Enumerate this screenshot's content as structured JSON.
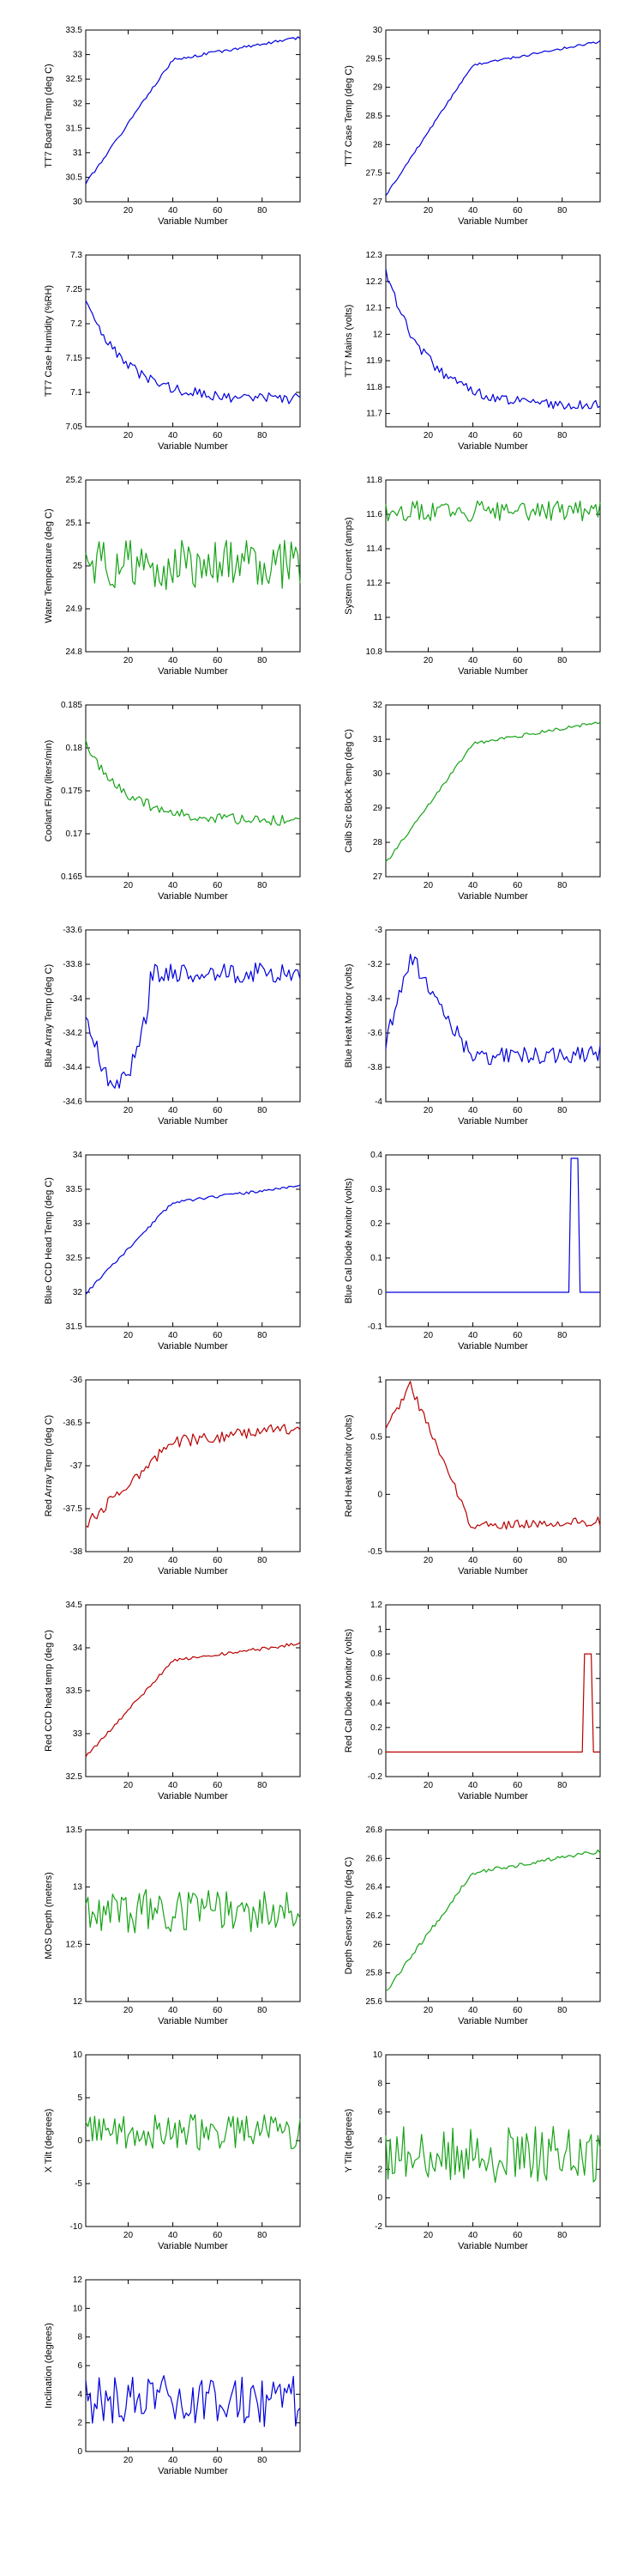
{
  "colors": {
    "blue": "#0000dd",
    "green": "#16a316",
    "red": "#b80000"
  },
  "chart_data": [
    {
      "type": "line",
      "xlabel": "Variable Number",
      "ylabel": "TT7 Board Temp (deg C)",
      "xlim": [
        1,
        97
      ],
      "ylim": [
        30,
        33.5
      ],
      "xticks": [
        "20",
        "40",
        "60",
        "80"
      ],
      "yticks": [
        "30",
        "30.5",
        "31",
        "31.5",
        "32",
        "32.5",
        "33",
        "33.5"
      ],
      "color": "blue",
      "shape": "sat",
      "params": [
        30.3,
        33.35
      ],
      "noise": 0.03,
      "seed": 1
    },
    {
      "type": "line",
      "xlabel": "Variable Number",
      "ylabel": "TT7 Case Temp (deg C)",
      "xlim": [
        1,
        97
      ],
      "ylim": [
        27,
        30
      ],
      "xticks": [
        "20",
        "40",
        "60",
        "80"
      ],
      "yticks": [
        "27",
        "27.5",
        "28",
        "28.5",
        "29",
        "29.5",
        "30"
      ],
      "color": "blue",
      "shape": "sat",
      "params": [
        27.05,
        29.8
      ],
      "noise": 0.02,
      "seed": 2
    },
    {
      "type": "line",
      "xlabel": "Variable Number",
      "ylabel": "TT7 Case Humidity (%RH)",
      "xlim": [
        1,
        97
      ],
      "ylim": [
        7.05,
        7.3
      ],
      "xticks": [
        "20",
        "40",
        "60",
        "80"
      ],
      "yticks": [
        "7.05",
        "7.1",
        "7.15",
        "7.2",
        "7.25",
        "7.3"
      ],
      "color": "blue",
      "shape": "dec",
      "params": [
        7.24,
        7.09
      ],
      "noise": 0.008,
      "seed": 3
    },
    {
      "type": "line",
      "xlabel": "Variable Number",
      "ylabel": "TT7 Mains  (volts)",
      "xlim": [
        1,
        97
      ],
      "ylim": [
        11.65,
        12.3
      ],
      "xticks": [
        "20",
        "40",
        "60",
        "80"
      ],
      "yticks": [
        "11.7",
        "11.8",
        "11.9",
        "12",
        "12.1",
        "12.2",
        "12.3"
      ],
      "color": "blue",
      "shape": "dec",
      "params": [
        12.27,
        11.73
      ],
      "noise": 0.02,
      "seed": 4
    },
    {
      "type": "line",
      "xlabel": "Variable Number",
      "ylabel": "Water Temperature (deg C)",
      "xlim": [
        1,
        97
      ],
      "ylim": [
        24.8,
        25.2
      ],
      "xticks": [
        "20",
        "40",
        "60",
        "80"
      ],
      "yticks": [
        "24.8",
        "24.9",
        "25",
        "25.1",
        "25.2"
      ],
      "color": "green",
      "shape": "noise",
      "params": [
        25.0
      ],
      "noise": 0.06,
      "seed": 5
    },
    {
      "type": "line",
      "xlabel": "Variable Number",
      "ylabel": "System Current (amps)",
      "xlim": [
        1,
        97
      ],
      "ylim": [
        10.8,
        11.8
      ],
      "xticks": [
        "20",
        "40",
        "60",
        "80"
      ],
      "yticks": [
        "10.8",
        "11",
        "11.2",
        "11.4",
        "11.6",
        "11.8"
      ],
      "color": "green",
      "shape": "noise",
      "params": [
        11.62
      ],
      "noise": 0.06,
      "seed": 6
    },
    {
      "type": "line",
      "xlabel": "Variable Number",
      "ylabel": "Coolant Flow (liters/min)",
      "xlim": [
        1,
        97
      ],
      "ylim": [
        0.165,
        0.185
      ],
      "xticks": [
        "20",
        "40",
        "60",
        "80"
      ],
      "yticks": [
        "0.165",
        "0.17",
        "0.175",
        "0.18",
        "0.185"
      ],
      "color": "green",
      "shape": "dec",
      "params": [
        0.181,
        0.1715
      ],
      "noise": 0.0006,
      "seed": 7
    },
    {
      "type": "line",
      "xlabel": "Variable Number",
      "ylabel": "Calib Src Block Temp (deg C)",
      "xlim": [
        1,
        97
      ],
      "ylim": [
        27,
        32
      ],
      "xticks": [
        "20",
        "40",
        "60",
        "80"
      ],
      "yticks": [
        "27",
        "28",
        "29",
        "30",
        "31",
        "32"
      ],
      "color": "green",
      "shape": "sat",
      "params": [
        27.3,
        31.5
      ],
      "noise": 0.05,
      "seed": 8
    },
    {
      "type": "line",
      "xlabel": "Variable Number",
      "ylabel": "Blue Array Temp (deg C)",
      "xlim": [
        1,
        97
      ],
      "ylim": [
        -34.6,
        -33.6
      ],
      "xticks": [
        "20",
        "40",
        "60",
        "80"
      ],
      "yticks": [
        "-34.6",
        "-34.4",
        "-34.2",
        "-34",
        "-33.8",
        "-33.6"
      ],
      "color": "blue",
      "shape": "dip",
      "params": [
        -34.0,
        -34.5,
        -33.85
      ],
      "noise": 0.06,
      "seed": 9
    },
    {
      "type": "line",
      "xlabel": "Variable Number",
      "ylabel": "Blue Heat Monitor (volts)",
      "xlim": [
        1,
        97
      ],
      "ylim": [
        -4,
        -3
      ],
      "xticks": [
        "20",
        "40",
        "60",
        "80"
      ],
      "yticks": [
        "-4",
        "-3.8",
        "-3.6",
        "-3.4",
        "-3.2",
        "-3"
      ],
      "color": "blue",
      "shape": "bump",
      "params": [
        -3.7,
        -3.15,
        -3.75
      ],
      "noise": 0.05,
      "seed": 10
    },
    {
      "type": "line",
      "xlabel": "Variable Number",
      "ylabel": "Blue CCD Head Temp (deg C)",
      "xlim": [
        1,
        97
      ],
      "ylim": [
        31.5,
        34
      ],
      "xticks": [
        "20",
        "40",
        "60",
        "80"
      ],
      "yticks": [
        "31.5",
        "32",
        "32.5",
        "33",
        "33.5",
        "34"
      ],
      "color": "blue",
      "shape": "sat",
      "params": [
        31.95,
        33.55
      ],
      "noise": 0.02,
      "seed": 11
    },
    {
      "type": "line",
      "xlabel": "Variable Number",
      "ylabel": "Blue Cal Diode Monitor (volts)",
      "xlim": [
        1,
        97
      ],
      "ylim": [
        -0.1,
        0.4
      ],
      "xticks": [
        "20",
        "40",
        "60",
        "80"
      ],
      "yticks": [
        "-0.1",
        "0",
        "0.1",
        "0.2",
        "0.3",
        "0.4"
      ],
      "color": "blue",
      "shape": "spike",
      "params": [
        0.0,
        0.39,
        84,
        87
      ],
      "noise": 0,
      "seed": 12
    },
    {
      "type": "line",
      "xlabel": "Variable Number",
      "ylabel": "Red Array Temp (deg C)",
      "xlim": [
        1,
        97
      ],
      "ylim": [
        -38,
        -36
      ],
      "xticks": [
        "20",
        "40",
        "60",
        "80"
      ],
      "yticks": [
        "-38",
        "-37.5",
        "-37",
        "-36.5",
        "-36"
      ],
      "color": "red",
      "shape": "sat",
      "params": [
        -37.7,
        -36.55
      ],
      "noise": 0.07,
      "seed": 13
    },
    {
      "type": "line",
      "xlabel": "Variable Number",
      "ylabel": "Red Heat Monitor (volts)",
      "xlim": [
        1,
        97
      ],
      "ylim": [
        -0.5,
        1
      ],
      "xticks": [
        "20",
        "40",
        "60",
        "80"
      ],
      "yticks": [
        "-0.5",
        "0",
        "0.5",
        "1"
      ],
      "color": "red",
      "shape": "bump",
      "params": [
        0.55,
        0.95,
        -0.3
      ],
      "noise": 0.04,
      "seed": 14
    },
    {
      "type": "line",
      "xlabel": "Variable Number",
      "ylabel": "Red CCD head temp (deg C)",
      "xlim": [
        1,
        97
      ],
      "ylim": [
        32.5,
        34.5
      ],
      "xticks": [
        "20",
        "40",
        "60",
        "80"
      ],
      "yticks": [
        "32.5",
        "33",
        "33.5",
        "34",
        "34.5"
      ],
      "color": "red",
      "shape": "sat",
      "params": [
        32.7,
        34.05
      ],
      "noise": 0.02,
      "seed": 15
    },
    {
      "type": "line",
      "xlabel": "Variable Number",
      "ylabel": "Red Cal Diode Monitor (volts)",
      "xlim": [
        1,
        97
      ],
      "ylim": [
        -0.2,
        1.2
      ],
      "xticks": [
        "20",
        "40",
        "60",
        "80"
      ],
      "yticks": [
        "-0.2",
        "0",
        "0.2",
        "0.4",
        "0.6",
        "0.8",
        "1",
        "1.2"
      ],
      "color": "red",
      "shape": "spike",
      "params": [
        0.0,
        0.8,
        90,
        93
      ],
      "noise": 0,
      "seed": 16
    },
    {
      "type": "line",
      "xlabel": "Variable Number",
      "ylabel": "MOS Depth  (meters)",
      "xlim": [
        1,
        97
      ],
      "ylim": [
        12,
        13.5
      ],
      "xticks": [
        "20",
        "40",
        "60",
        "80"
      ],
      "yticks": [
        "12",
        "12.5",
        "13",
        "13.5"
      ],
      "color": "green",
      "shape": "noise",
      "params": [
        12.8
      ],
      "noise": 0.2,
      "seed": 17
    },
    {
      "type": "line",
      "xlabel": "Variable Number",
      "ylabel": "Depth Sensor Temp (deg C)",
      "xlim": [
        1,
        97
      ],
      "ylim": [
        25.6,
        26.8
      ],
      "xticks": [
        "20",
        "40",
        "60",
        "80"
      ],
      "yticks": [
        "25.6",
        "25.8",
        "26",
        "26.2",
        "26.4",
        "26.6",
        "26.8"
      ],
      "color": "green",
      "shape": "sat",
      "params": [
        25.65,
        26.65
      ],
      "noise": 0.015,
      "seed": 18
    },
    {
      "type": "line",
      "xlabel": "Variable Number",
      "ylabel": "X Tilt  (degrees)",
      "xlim": [
        1,
        97
      ],
      "ylim": [
        -10,
        10
      ],
      "xticks": [
        "20",
        "40",
        "60",
        "80"
      ],
      "yticks": [
        "-10",
        "-5",
        "0",
        "5",
        "10"
      ],
      "color": "green",
      "shape": "noise",
      "params": [
        1.0
      ],
      "noise": 2.2,
      "seed": 19
    },
    {
      "type": "line",
      "xlabel": "Variable Number",
      "ylabel": "Y Tilt  (degrees)",
      "xlim": [
        1,
        97
      ],
      "ylim": [
        -2,
        10
      ],
      "xticks": [
        "20",
        "40",
        "60",
        "80"
      ],
      "yticks": [
        "-2",
        "0",
        "2",
        "4",
        "6",
        "8",
        "10"
      ],
      "color": "green",
      "shape": "noise",
      "params": [
        3.0
      ],
      "noise": 2.0,
      "seed": 20
    },
    {
      "type": "line",
      "xlabel": "Variable Number",
      "ylabel": "Inclination  (degrees)",
      "xlim": [
        1,
        97
      ],
      "ylim": [
        0,
        12
      ],
      "xticks": [
        "20",
        "40",
        "60",
        "80"
      ],
      "yticks": [
        "0",
        "2",
        "4",
        "6",
        "8",
        "10",
        "12"
      ],
      "color": "blue",
      "shape": "noise",
      "params": [
        3.5
      ],
      "noise": 1.8,
      "seed": 21
    }
  ]
}
